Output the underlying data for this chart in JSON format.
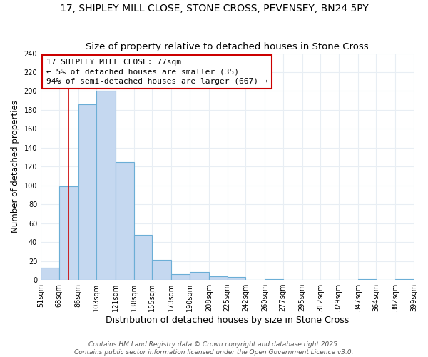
{
  "title": "17, SHIPLEY MILL CLOSE, STONE CROSS, PEVENSEY, BN24 5PY",
  "subtitle": "Size of property relative to detached houses in Stone Cross",
  "xlabel": "Distribution of detached houses by size in Stone Cross",
  "ylabel": "Number of detached properties",
  "bin_labels": [
    "51sqm",
    "68sqm",
    "86sqm",
    "103sqm",
    "121sqm",
    "138sqm",
    "155sqm",
    "173sqm",
    "190sqm",
    "208sqm",
    "225sqm",
    "242sqm",
    "260sqm",
    "277sqm",
    "295sqm",
    "312sqm",
    "329sqm",
    "347sqm",
    "364sqm",
    "382sqm",
    "399sqm"
  ],
  "bin_edges": [
    51,
    68,
    86,
    103,
    121,
    138,
    155,
    173,
    190,
    208,
    225,
    242,
    260,
    277,
    295,
    312,
    329,
    347,
    364,
    382,
    399
  ],
  "bar_heights": [
    13,
    99,
    186,
    200,
    125,
    48,
    21,
    6,
    8,
    4,
    3,
    0,
    1,
    0,
    0,
    0,
    0,
    1,
    0,
    1
  ],
  "bar_color": "#c5d8f0",
  "bar_edgecolor": "#6baed6",
  "bar_linewidth": 0.8,
  "property_size": 77,
  "redline_color": "#cc0000",
  "annotation_line1": "17 SHIPLEY MILL CLOSE: 77sqm",
  "annotation_line2": "← 5% of detached houses are smaller (35)",
  "annotation_line3": "94% of semi-detached houses are larger (667) →",
  "ylim": [
    0,
    240
  ],
  "yticks": [
    0,
    20,
    40,
    60,
    80,
    100,
    120,
    140,
    160,
    180,
    200,
    220,
    240
  ],
  "background_color": "#ffffff",
  "grid_color": "#e8eef4",
  "footer_line1": "Contains HM Land Registry data © Crown copyright and database right 2025.",
  "footer_line2": "Contains public sector information licensed under the Open Government Licence v3.0.",
  "title_fontsize": 10,
  "subtitle_fontsize": 9.5,
  "xlabel_fontsize": 9,
  "ylabel_fontsize": 8.5,
  "tick_fontsize": 7,
  "annotation_fontsize": 8,
  "footer_fontsize": 6.5
}
